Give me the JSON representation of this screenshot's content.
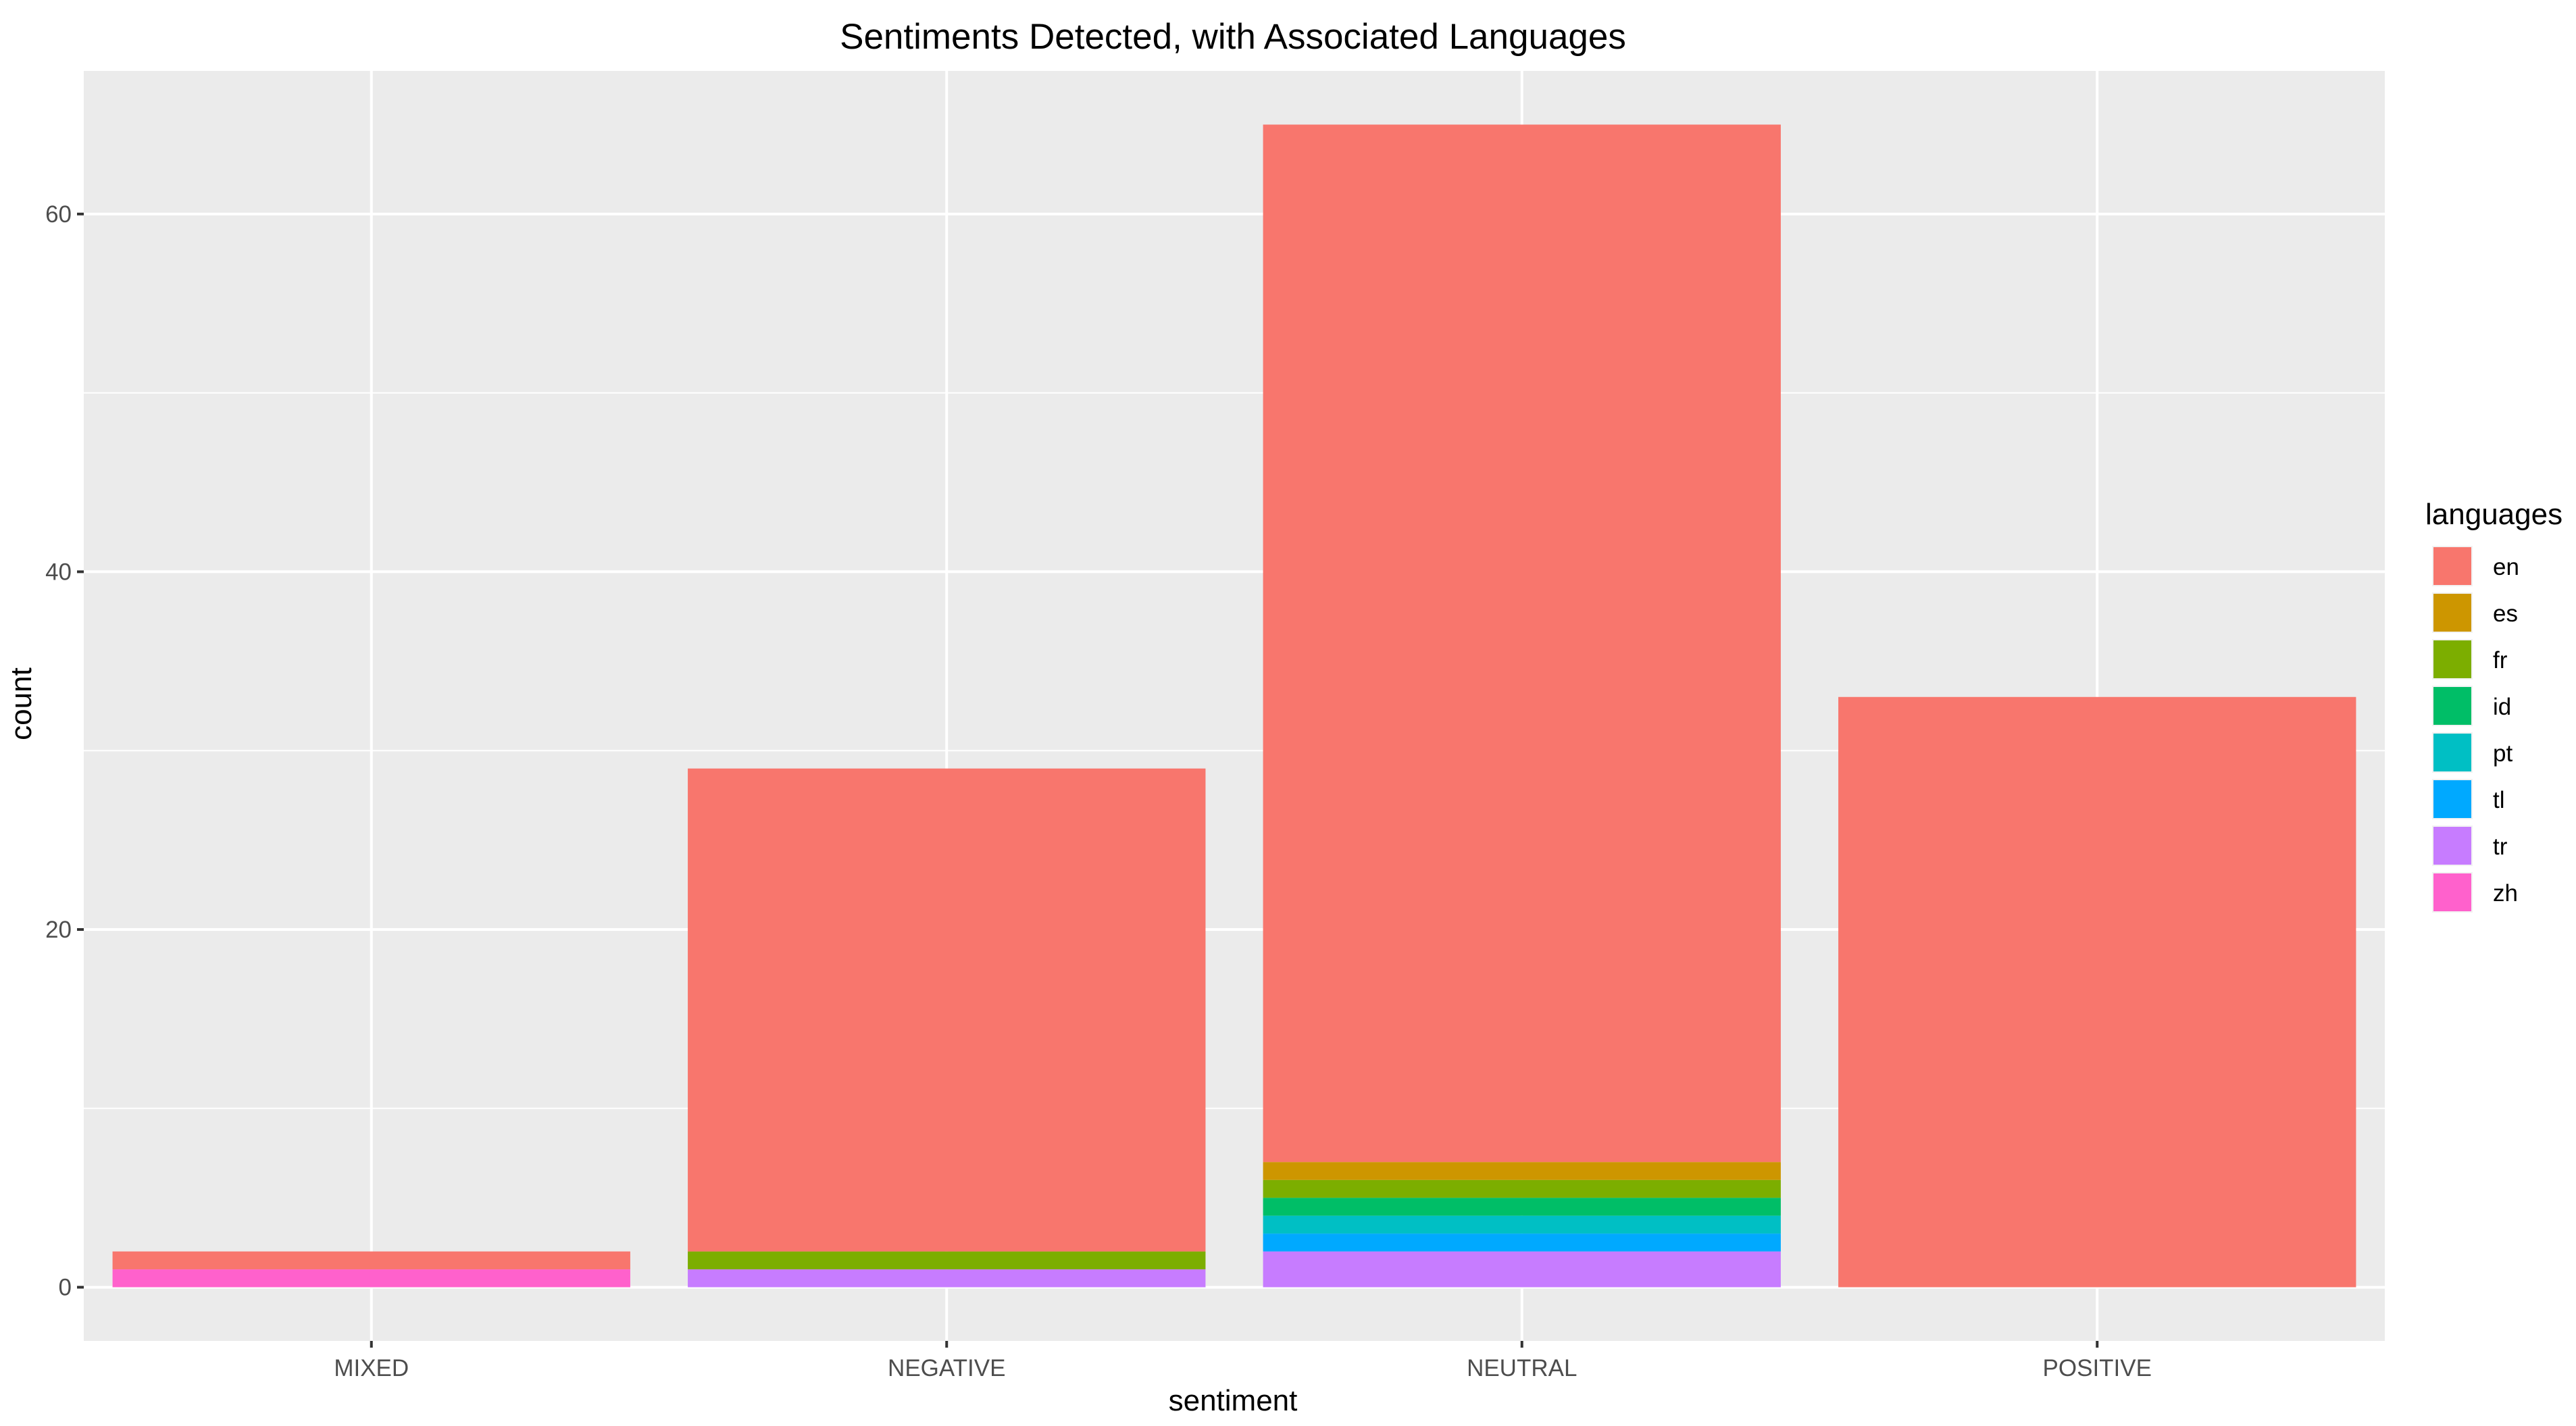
{
  "chart_data": {
    "type": "bar",
    "stacked": true,
    "title": "Sentiments Detected, with Associated Languages",
    "xlabel": "sentiment",
    "ylabel": "count",
    "ylim": [
      -3,
      68
    ],
    "yticks": [
      0,
      20,
      40,
      60
    ],
    "categories": [
      "MIXED",
      "NEGATIVE",
      "NEUTRAL",
      "POSITIVE"
    ],
    "legend": {
      "title": "languages",
      "position": "right"
    },
    "series": [
      {
        "name": "en",
        "color": "#F8766D",
        "values": [
          1,
          27,
          58,
          33
        ]
      },
      {
        "name": "es",
        "color": "#CD9600",
        "values": [
          0,
          0,
          1,
          0
        ]
      },
      {
        "name": "fr",
        "color": "#7CAE00",
        "values": [
          0,
          1,
          1,
          0
        ]
      },
      {
        "name": "id",
        "color": "#00BE67",
        "values": [
          0,
          0,
          1,
          0
        ]
      },
      {
        "name": "pt",
        "color": "#00BFC4",
        "values": [
          0,
          0,
          1,
          0
        ]
      },
      {
        "name": "tl",
        "color": "#00A9FF",
        "values": [
          0,
          0,
          1,
          0
        ]
      },
      {
        "name": "tr",
        "color": "#C77CFF",
        "values": [
          0,
          1,
          2,
          0
        ]
      },
      {
        "name": "zh",
        "color": "#FF61CC",
        "values": [
          1,
          0,
          0,
          0
        ]
      }
    ],
    "grid": true,
    "background": "#EBEBEB"
  }
}
